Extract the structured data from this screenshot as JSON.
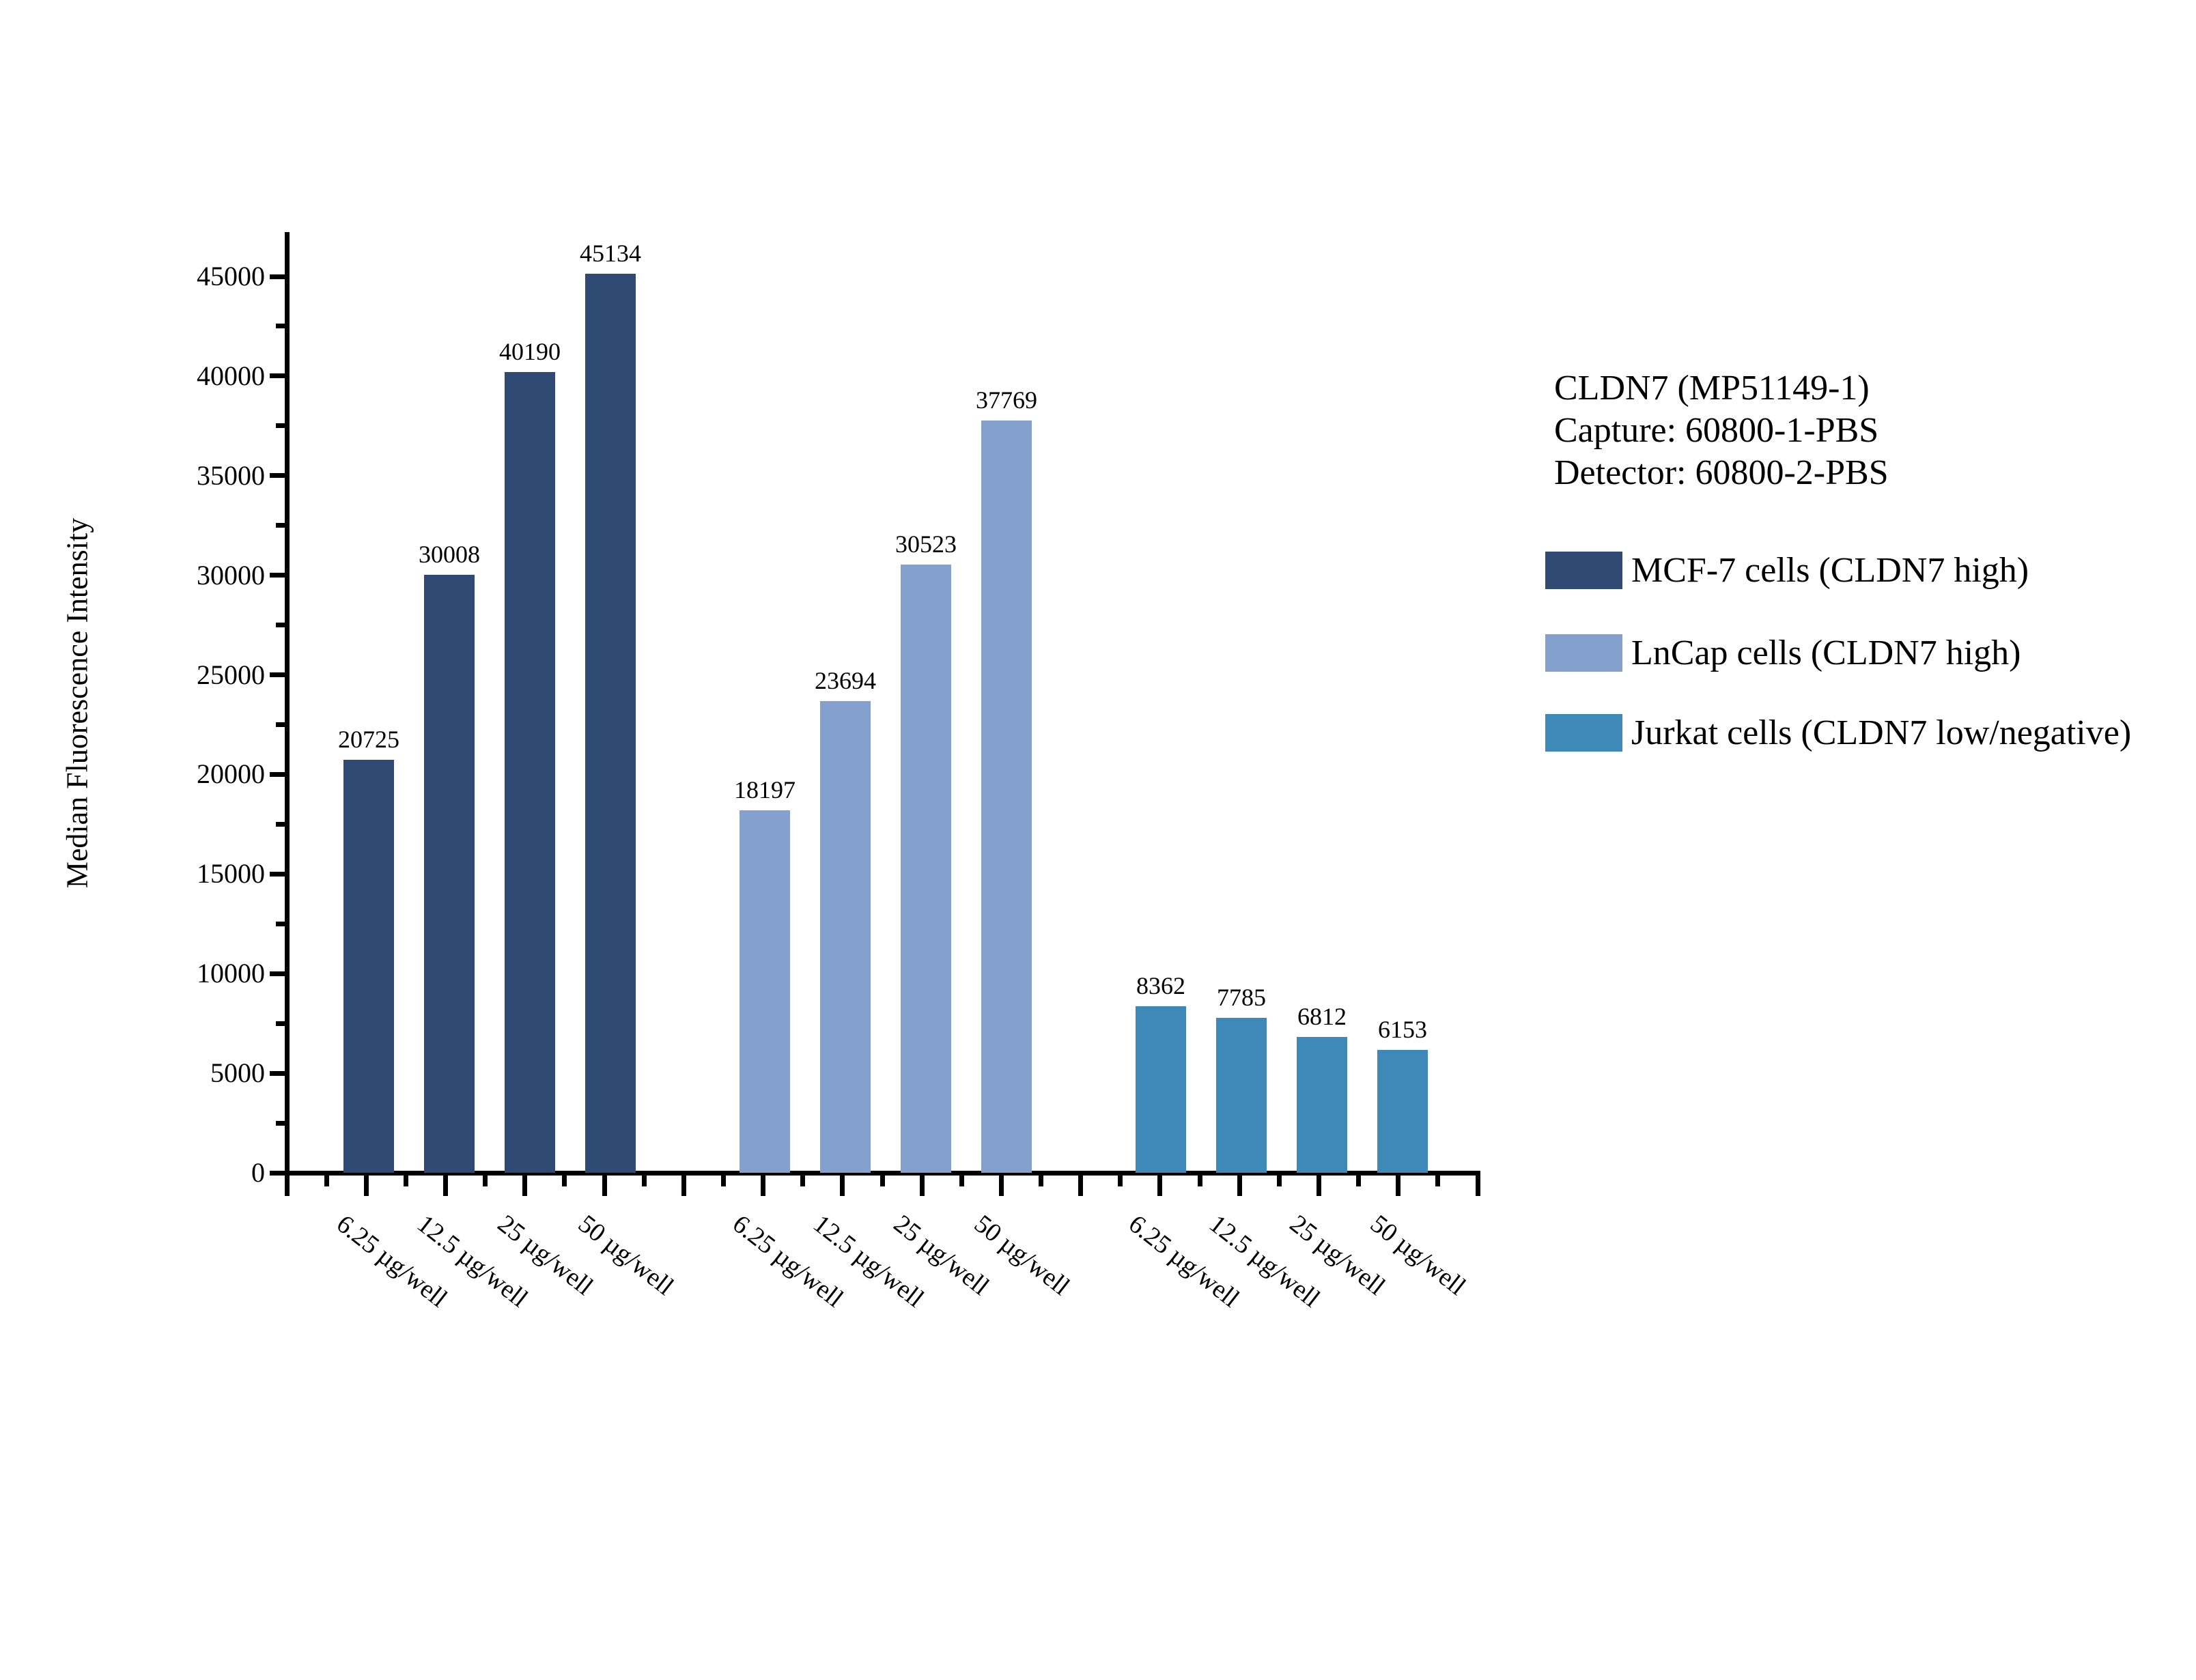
{
  "chart_data": {
    "type": "bar",
    "title": "",
    "ylabel": "Median Fluorescence Intensity",
    "xlabel": "",
    "ylim": [
      0,
      45000
    ],
    "ytick_interval": 5000,
    "ytick_minor_interval": 2500,
    "grid": false,
    "legend_position": "right",
    "categories": [
      "6.25 µg/well",
      "12.5 µg/well",
      "25 µg/well",
      "50 µg/well"
    ],
    "series": [
      {
        "name": "MCF-7 cells (CLDN7 high)",
        "color": "#2F4B74",
        "values": [
          20725,
          30008,
          40190,
          45134
        ]
      },
      {
        "name": "LnCap cells (CLDN7 high)",
        "color": "#84A0CC",
        "values": [
          18197,
          23694,
          30523,
          37769
        ]
      },
      {
        "name": "Jurkat cells (CLDN7 low/negative)",
        "color": "#3E89B7",
        "values": [
          8362,
          7785,
          6812,
          6153
        ]
      }
    ],
    "annotation": {
      "lines": [
        "CLDN7 (MP51149-1)",
        "Capture: 60800-1-PBS",
        "Detector: 60800-2-PBS"
      ]
    }
  }
}
